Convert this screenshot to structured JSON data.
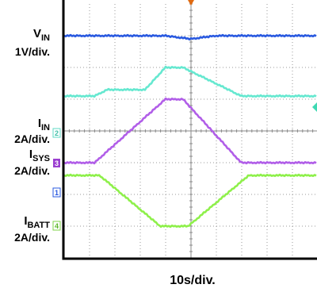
{
  "labels": {
    "vin": {
      "main": "V",
      "sub": "IN",
      "scale": "1V/div."
    },
    "iin": {
      "main": "I",
      "sub": "IN",
      "scale": "2A/div."
    },
    "isys": {
      "main": "I",
      "sub": "SYS",
      "scale": "2A/div."
    },
    "ibatt": {
      "main": "I",
      "sub": "BATT",
      "scale": "2A/div."
    },
    "timebase": "10s/div."
  },
  "markers": {
    "ch2": "2",
    "ch3": "3",
    "ch1": "1",
    "ch4": "4"
  },
  "colors": {
    "background": "#ffffff",
    "grid": "#9a9a9a",
    "frame": "#000000",
    "vin": "#2a5ae0",
    "iin": "#66e8d0",
    "isys": "#b15ee8",
    "ibatt": "#8ef04a"
  },
  "chart_data": {
    "type": "line",
    "x_unit": "s",
    "y_unit": "div",
    "x_divisions": 10,
    "y_divisions": 8,
    "grid": true,
    "series": [
      {
        "channel": "1",
        "color_key": "vin",
        "x": [
          0,
          40,
          50,
          60,
          100
        ],
        "y": [
          7.0,
          7.0,
          6.9,
          7.0,
          7.0
        ]
      },
      {
        "channel": "2",
        "color_key": "iin",
        "x": [
          0,
          12,
          17,
          32,
          40,
          47,
          65,
          70,
          100
        ],
        "y": [
          5.1,
          5.1,
          5.3,
          5.3,
          6.0,
          6.0,
          5.3,
          5.1,
          5.1
        ]
      },
      {
        "channel": "3",
        "color_key": "isys",
        "x": [
          0,
          12,
          40,
          47,
          70,
          100
        ],
        "y": [
          3.0,
          3.0,
          5.0,
          5.0,
          3.0,
          3.0
        ]
      },
      {
        "channel": "4",
        "color_key": "ibatt",
        "x": [
          0,
          14,
          38,
          49,
          73,
          100
        ],
        "y": [
          2.6,
          2.6,
          1.0,
          1.0,
          2.6,
          2.6
        ]
      }
    ]
  }
}
